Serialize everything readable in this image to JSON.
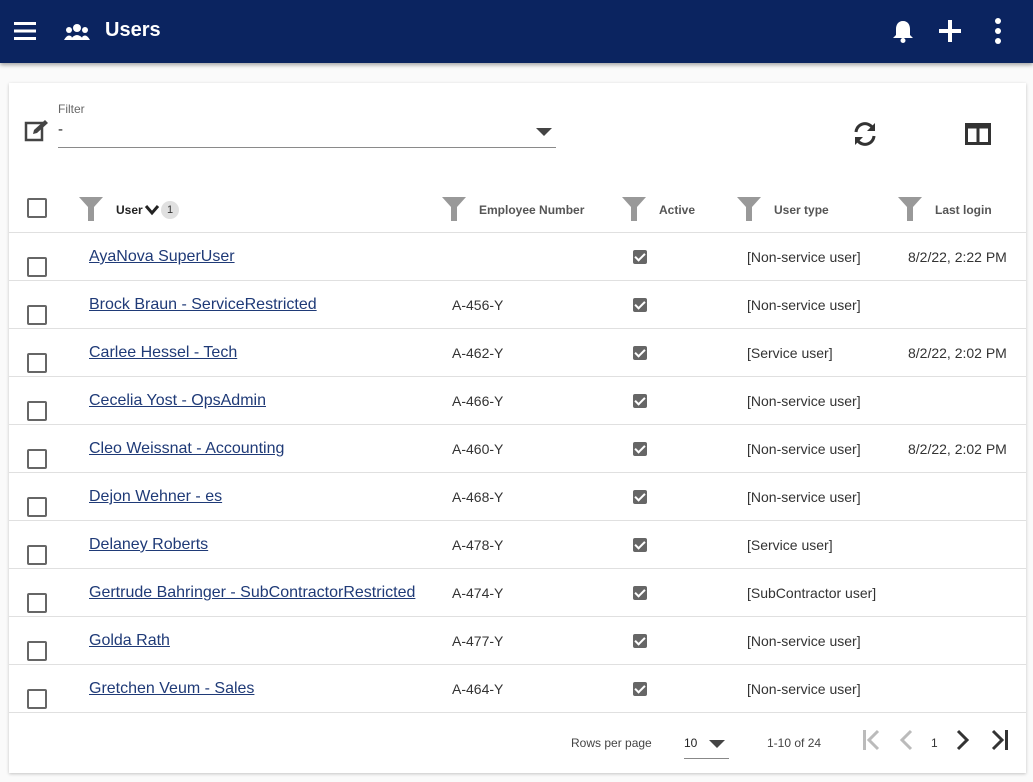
{
  "appbar": {
    "title": "Users",
    "icons": [
      "menu-icon",
      "users-icon",
      "bell-icon",
      "plus-icon",
      "more-vert-icon"
    ]
  },
  "filter": {
    "label": "Filter",
    "value": "-",
    "icons": [
      "edit-icon",
      "refresh-icon",
      "columns-icon"
    ]
  },
  "table": {
    "headers": {
      "user": "User",
      "user_sort_badge": "1",
      "employee_number": "Employee Number",
      "active": "Active",
      "user_type": "User type",
      "last_login": "Last login"
    },
    "rows": [
      {
        "name": "AyaNova SuperUser",
        "emp": "",
        "active": true,
        "type": "[Non-service user]",
        "login": "8/2/22, 2:22 PM"
      },
      {
        "name": "Brock Braun - ServiceRestricted",
        "emp": "A-456-Y",
        "active": true,
        "type": "[Non-service user]",
        "login": ""
      },
      {
        "name": "Carlee Hessel - Tech",
        "emp": "A-462-Y",
        "active": true,
        "type": "[Service user]",
        "login": "8/2/22, 2:02 PM"
      },
      {
        "name": "Cecelia Yost - OpsAdmin",
        "emp": "A-466-Y",
        "active": true,
        "type": "[Non-service user]",
        "login": ""
      },
      {
        "name": "Cleo Weissnat - Accounting",
        "emp": "A-460-Y",
        "active": true,
        "type": "[Non-service user]",
        "login": "8/2/22, 2:02 PM"
      },
      {
        "name": "Dejon Wehner - es",
        "emp": "A-468-Y",
        "active": true,
        "type": "[Non-service user]",
        "login": ""
      },
      {
        "name": "Delaney Roberts",
        "emp": "A-478-Y",
        "active": true,
        "type": "[Service user]",
        "login": ""
      },
      {
        "name": "Gertrude Bahringer - SubContractorRestricted",
        "emp": "A-474-Y",
        "active": true,
        "type": "[SubContractor user]",
        "login": ""
      },
      {
        "name": "Golda Rath",
        "emp": "A-477-Y",
        "active": true,
        "type": "[Non-service user]",
        "login": ""
      },
      {
        "name": "Gretchen Veum - Sales",
        "emp": "A-464-Y",
        "active": true,
        "type": "[Non-service user]",
        "login": ""
      }
    ]
  },
  "footer": {
    "rows_per_page_label": "Rows per page",
    "rows_per_page_value": "10",
    "range": "1-10 of 24",
    "page": "1"
  }
}
